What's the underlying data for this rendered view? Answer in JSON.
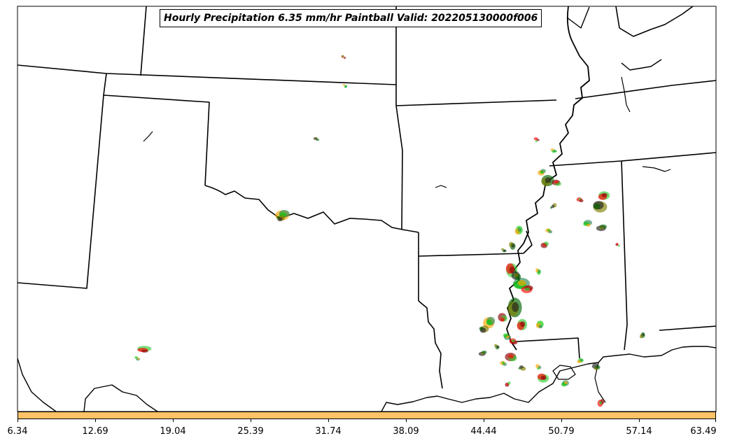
{
  "title": "Hourly Precipitation 6.35 mm/hr Paintball Valid: 202205130000f006",
  "colorbar": {
    "color": "#ffc266",
    "ticks": [
      "6.34",
      "12.69",
      "19.04",
      "25.39",
      "31.74",
      "38.09",
      "44.44",
      "50.79",
      "57.14",
      "63.49"
    ]
  },
  "member_colors": [
    "#ff0000",
    "#00cc00",
    "#006400",
    "#8b0000",
    "#ffa500",
    "#808000",
    "#32cd32",
    "#2e8b57",
    "#222222"
  ]
}
